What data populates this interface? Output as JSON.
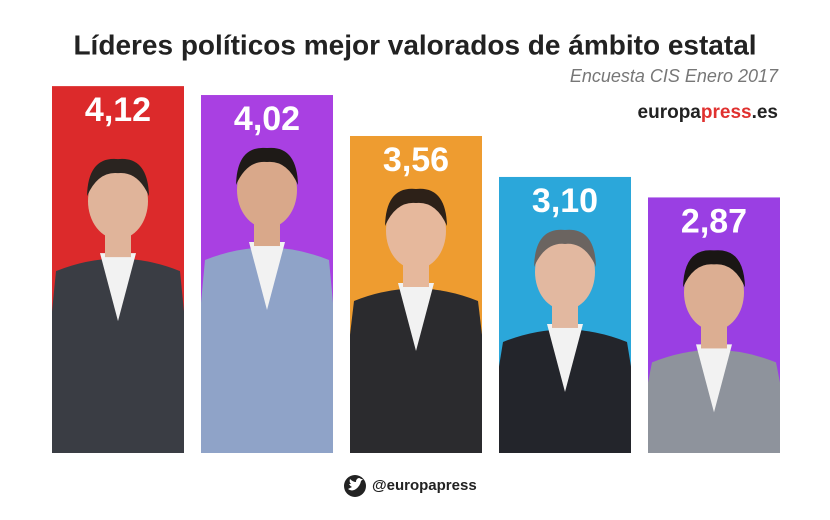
{
  "chart_data": {
    "type": "bar",
    "title": "Líderes políticos mejor valorados de ámbito estatal",
    "subtitle": "Encuesta CIS Enero 2017",
    "brand": [
      "europa",
      "press",
      ".es"
    ],
    "footer": "@europapress",
    "categories": [
      null,
      null,
      null,
      null,
      null
    ],
    "values": [
      4.12,
      4.02,
      3.56,
      3.1,
      2.87
    ],
    "value_labels": [
      "4,12",
      "4,02",
      "3,56",
      "3,10",
      "2,87"
    ],
    "colors": [
      "#dc2a2b",
      "#a940e2",
      "#ee9c30",
      "#2ba7da",
      "#9a3fe3"
    ],
    "ylim": [
      0,
      4.2
    ]
  }
}
